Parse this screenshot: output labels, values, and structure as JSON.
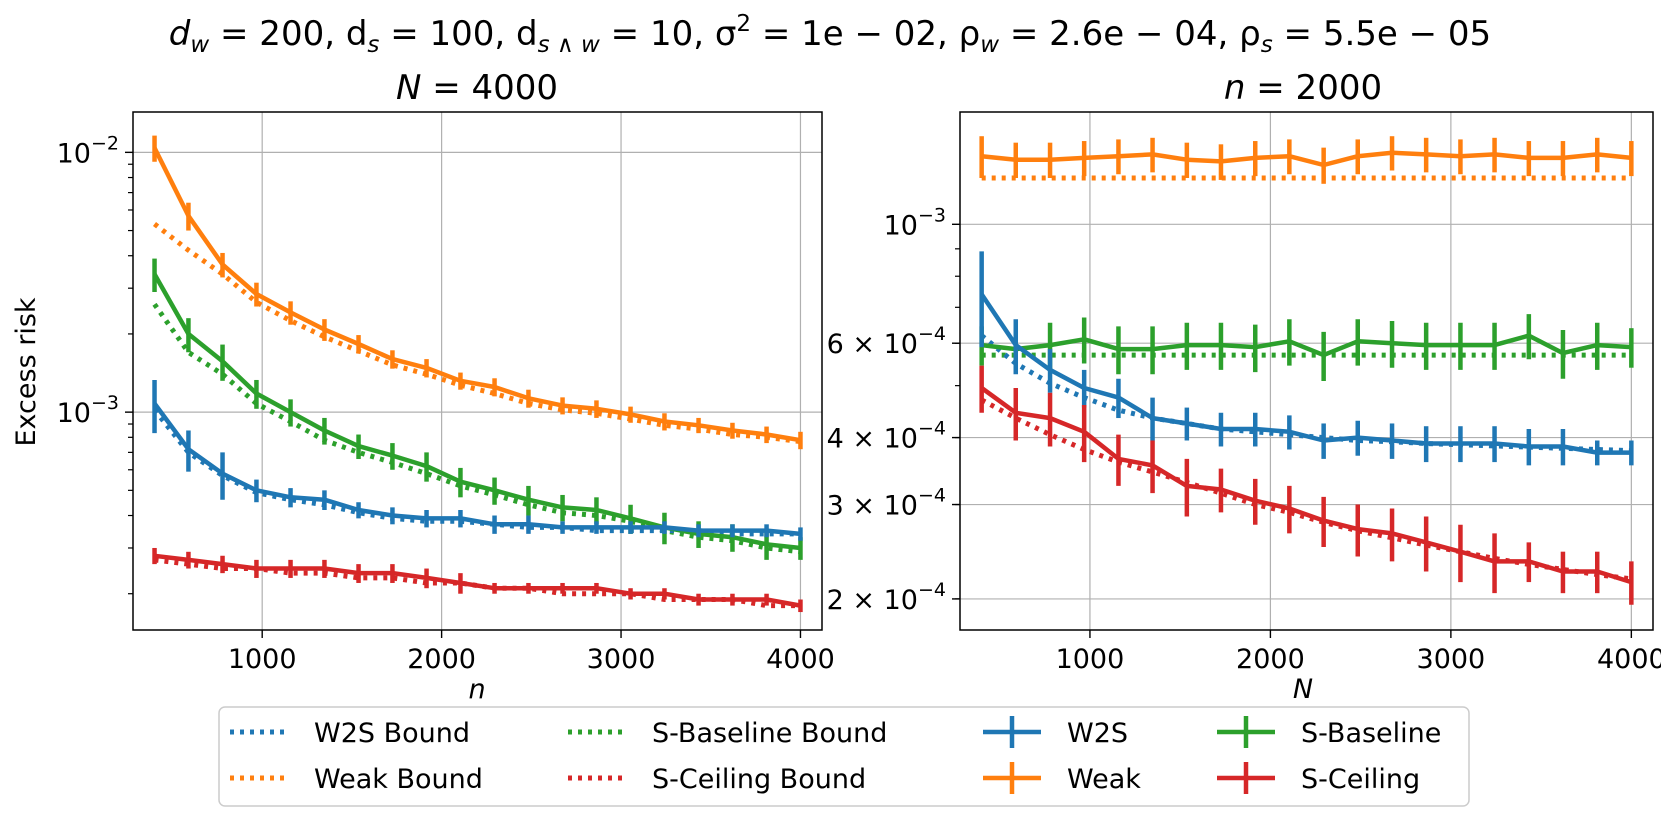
{
  "suptitle": "d_w = 200, d_s = 100, d_{s∧w} = 10, σ² = 1e − 02, ρ_w = 2.6e − 04, ρ_s = 5.5e − 05",
  "suptitle_parts": {
    "t1": "d",
    "t1s": "w",
    "t2": " = 200, d",
    "t2s": "s",
    "t3": " = 100, d",
    "t3s": "s ∧ w",
    "t4": " = 10, σ",
    "t4p": "2",
    "t5": " = 1e − 02, ρ",
    "t5s": "w",
    "t6": " = 2.6e − 04, ρ",
    "t6s": "s",
    "t7": " = 5.5e − 05"
  },
  "colors": {
    "W2S": "#1f77b4",
    "Weak": "#ff7f0e",
    "S-Baseline": "#2ca02c",
    "S-Ceiling": "#d62728"
  },
  "legend": {
    "items": [
      {
        "label": "W2S Bound",
        "style": "dotted",
        "series": "W2S"
      },
      {
        "label": "Weak Bound",
        "style": "dotted",
        "series": "Weak"
      },
      {
        "label": "S-Baseline Bound",
        "style": "dotted",
        "series": "S-Baseline"
      },
      {
        "label": "S-Ceiling Bound",
        "style": "dotted",
        "series": "S-Ceiling"
      },
      {
        "label": "W2S",
        "style": "errorbar",
        "series": "W2S"
      },
      {
        "label": "Weak",
        "style": "errorbar",
        "series": "Weak"
      },
      {
        "label": "S-Baseline",
        "style": "errorbar",
        "series": "S-Baseline"
      },
      {
        "label": "S-Ceiling",
        "style": "errorbar",
        "series": "S-Ceiling"
      }
    ]
  },
  "chart_data": [
    {
      "type": "line",
      "title": "N = 4000",
      "title_var": "N",
      "title_val": " = 4000",
      "xlabel": "n",
      "ylabel": "Excess risk",
      "yscale": "log",
      "xlim": [
        280,
        4120
      ],
      "ylim": [
        0.000145,
        0.0143
      ],
      "xticks": [
        1000,
        2000,
        3000,
        4000
      ],
      "xtick_labels": [
        "1000",
        "2000",
        "3000",
        "4000"
      ],
      "yticks": [
        0.01,
        0.001
      ],
      "ytick_labels": [
        {
          "base": "10",
          "exp": "−2"
        },
        {
          "base": "10",
          "exp": "−3"
        }
      ],
      "grid": true,
      "x": [
        400,
        589,
        779,
        968,
        1158,
        1347,
        1537,
        1726,
        1916,
        2105,
        2295,
        2484,
        2674,
        2863,
        3053,
        3242,
        3432,
        3621,
        3811,
        4000
      ],
      "series": [
        {
          "name": "Weak",
          "values": [
            0.0104,
            0.0057,
            0.0037,
            0.00285,
            0.00242,
            0.00208,
            0.00183,
            0.0016,
            0.00148,
            0.00132,
            0.00125,
            0.00113,
            0.00106,
            0.00103,
            0.00098,
            0.00092,
            0.00089,
            0.00085,
            0.00082,
            0.00078
          ],
          "err": [
            0.0012,
            0.0007,
            0.0004,
            0.0003,
            0.00025,
            0.0002,
            0.00015,
            0.00013,
            0.00012,
            0.0001,
            0.0001,
            9e-05,
            8e-05,
            8e-05,
            7e-05,
            7e-05,
            6e-05,
            6e-05,
            6e-05,
            6e-05
          ]
        },
        {
          "name": "S-Baseline",
          "values": [
            0.0034,
            0.002,
            0.00157,
            0.00118,
            0.001,
            0.00085,
            0.00074,
            0.00068,
            0.00062,
            0.00054,
            0.0005,
            0.00046,
            0.00043,
            0.00042,
            0.00039,
            0.00036,
            0.00034,
            0.00033,
            0.00031,
            0.0003
          ],
          "err": [
            0.0005,
            0.0003,
            0.00025,
            0.00015,
            0.00012,
            0.0001,
            8e-05,
            8e-05,
            8e-05,
            7e-05,
            6e-05,
            6e-05,
            5e-05,
            5e-05,
            5e-05,
            5e-05,
            4e-05,
            4e-05,
            4e-05,
            3e-05
          ]
        },
        {
          "name": "W2S",
          "values": [
            0.00108,
            0.00072,
            0.00058,
            0.0005,
            0.00047,
            0.00046,
            0.00042,
            0.0004,
            0.00039,
            0.00039,
            0.00037,
            0.00037,
            0.00036,
            0.00036,
            0.00036,
            0.00036,
            0.00035,
            0.00035,
            0.00035,
            0.00034
          ],
          "err": [
            0.00025,
            0.00013,
            0.00012,
            5e-05,
            4e-05,
            4e-05,
            3e-05,
            3e-05,
            3e-05,
            3e-05,
            3e-05,
            3e-05,
            2e-05,
            2e-05,
            2e-05,
            2e-05,
            2e-05,
            2e-05,
            2e-05,
            2e-05
          ]
        },
        {
          "name": "S-Ceiling",
          "values": [
            0.00028,
            0.00027,
            0.00026,
            0.00025,
            0.00025,
            0.00025,
            0.00024,
            0.00024,
            0.00023,
            0.00022,
            0.00021,
            0.00021,
            0.00021,
            0.00021,
            0.0002,
            0.0002,
            0.00019,
            0.00019,
            0.00019,
            0.00018
          ],
          "err": [
            2e-05,
            2e-05,
            2e-05,
            2e-05,
            2e-05,
            2e-05,
            2e-05,
            2e-05,
            2e-05,
            2e-05,
            1e-05,
            1e-05,
            1e-05,
            1e-05,
            1e-05,
            1e-05,
            1e-05,
            1e-05,
            1e-05,
            1e-05
          ]
        }
      ],
      "bounds": [
        {
          "name": "Weak",
          "values": [
            0.0053,
            0.0042,
            0.0034,
            0.00265,
            0.00225,
            0.00195,
            0.00172,
            0.00152,
            0.0014,
            0.00127,
            0.00118,
            0.00108,
            0.00102,
            0.00099,
            0.00094,
            0.00089,
            0.00086,
            0.00082,
            0.0008,
            0.00077
          ]
        },
        {
          "name": "S-Baseline",
          "values": [
            0.0026,
            0.0017,
            0.0014,
            0.00108,
            0.00092,
            0.00078,
            0.0007,
            0.00064,
            0.00058,
            0.00052,
            0.00048,
            0.00044,
            0.00041,
            0.0004,
            0.00038,
            0.00035,
            0.00033,
            0.00032,
            0.0003,
            0.00029
          ]
        },
        {
          "name": "W2S",
          "values": [
            0.00102,
            0.0007,
            0.00057,
            0.00049,
            0.00046,
            0.00044,
            0.00041,
            0.00039,
            0.00038,
            0.00038,
            0.00037,
            0.00036,
            0.00036,
            0.00035,
            0.00035,
            0.00035,
            0.00035,
            0.00034,
            0.00034,
            0.00034
          ]
        },
        {
          "name": "S-Ceiling",
          "values": [
            0.00027,
            0.00026,
            0.00025,
            0.00025,
            0.00024,
            0.00024,
            0.00023,
            0.00023,
            0.00022,
            0.00022,
            0.00021,
            0.00021,
            0.0002,
            0.0002,
            0.0002,
            0.00019,
            0.00019,
            0.00019,
            0.00018,
            0.00018
          ]
        }
      ]
    },
    {
      "type": "line",
      "title": "n = 2000",
      "title_var": "n",
      "title_val": " = 2000",
      "xlabel": "N",
      "ylabel": "",
      "yscale": "log",
      "xlim": [
        280,
        4120
      ],
      "ylim": [
        0.000175,
        0.00162
      ],
      "xticks": [
        1000,
        2000,
        3000,
        4000
      ],
      "xtick_labels": [
        "1000",
        "2000",
        "3000",
        "4000"
      ],
      "yticks": [
        0.001,
        0.0006,
        0.0004,
        0.0003,
        0.0002
      ],
      "ytick_labels": [
        {
          "base": "10",
          "exp": "−3"
        },
        {
          "base": "6 × 10",
          "exp": "−4"
        },
        {
          "base": "4 × 10",
          "exp": "−4"
        },
        {
          "base": "3 × 10",
          "exp": "−4"
        },
        {
          "base": "2 × 10",
          "exp": "−4"
        }
      ],
      "grid": true,
      "x": [
        400,
        589,
        779,
        968,
        1158,
        1347,
        1537,
        1726,
        1916,
        2105,
        2295,
        2484,
        2674,
        2863,
        3053,
        3242,
        3432,
        3621,
        3811,
        4000
      ],
      "series": [
        {
          "name": "Weak",
          "values": [
            0.00134,
            0.00132,
            0.00132,
            0.00133,
            0.00134,
            0.00135,
            0.00132,
            0.00131,
            0.00133,
            0.00134,
            0.00129,
            0.00134,
            0.00136,
            0.00135,
            0.00134,
            0.00135,
            0.00133,
            0.00133,
            0.00135,
            0.00133
          ],
          "err": [
            0.00012,
            0.0001,
            0.0001,
            0.0001,
            0.0001,
            0.0001,
            0.0001,
            0.0001,
            0.0001,
            0.0001,
            0.0001,
            0.0001,
            0.0001,
            0.0001,
            0.0001,
            0.0001,
            0.0001,
            0.0001,
            0.0001,
            0.0001
          ]
        },
        {
          "name": "S-Baseline",
          "values": [
            0.000595,
            0.000585,
            0.000595,
            0.00061,
            0.000585,
            0.000585,
            0.000595,
            0.000595,
            0.00059,
            0.000605,
            0.00057,
            0.000605,
            0.0006,
            0.000595,
            0.000595,
            0.000595,
            0.00062,
            0.000575,
            0.000595,
            0.00059
          ],
          "err": [
            5e-05,
            5e-05,
            6e-05,
            6e-05,
            6e-05,
            6e-05,
            6e-05,
            6e-05,
            6e-05,
            6e-05,
            6e-05,
            6e-05,
            6e-05,
            6e-05,
            6e-05,
            6e-05,
            6e-05,
            6e-05,
            6e-05,
            5e-05
          ]
        },
        {
          "name": "W2S",
          "values": [
            0.00074,
            0.000595,
            0.000535,
            0.000495,
            0.000475,
            0.000435,
            0.000425,
            0.000415,
            0.000415,
            0.00041,
            0.000395,
            0.0004,
            0.000395,
            0.00039,
            0.00039,
            0.00039,
            0.000385,
            0.000385,
            0.000375,
            0.000375
          ],
          "err": [
            0.00015,
            7e-05,
            5e-05,
            4e-05,
            4e-05,
            4e-05,
            3e-05,
            3e-05,
            3e-05,
            3e-05,
            3e-05,
            3e-05,
            3e-05,
            3e-05,
            3e-05,
            3e-05,
            3e-05,
            3e-05,
            2e-05,
            2e-05
          ]
        },
        {
          "name": "S-Ceiling",
          "values": [
            0.000495,
            0.000445,
            0.000435,
            0.00041,
            0.000365,
            0.000355,
            0.000325,
            0.00032,
            0.000305,
            0.000295,
            0.00028,
            0.00027,
            0.000265,
            0.000255,
            0.000245,
            0.000235,
            0.000235,
            0.000225,
            0.000225,
            0.000215
          ],
          "err": [
            5e-05,
            5e-05,
            5e-05,
            5e-05,
            4e-05,
            4e-05,
            4e-05,
            3e-05,
            3e-05,
            3e-05,
            3e-05,
            3e-05,
            3e-05,
            3e-05,
            3e-05,
            3e-05,
            2e-05,
            2e-05,
            2e-05,
            2e-05
          ]
        }
      ],
      "bounds": [
        {
          "name": "Weak",
          "values": [
            0.00122,
            0.00122,
            0.00122,
            0.00122,
            0.00122,
            0.00122,
            0.00122,
            0.00122,
            0.00122,
            0.00122,
            0.00122,
            0.00122,
            0.00122,
            0.00122,
            0.00122,
            0.00122,
            0.00122,
            0.00122,
            0.00122,
            0.00122
          ]
        },
        {
          "name": "S-Baseline",
          "values": [
            0.00057,
            0.00057,
            0.00057,
            0.00057,
            0.00057,
            0.00057,
            0.00057,
            0.00057,
            0.00057,
            0.00057,
            0.00057,
            0.00057,
            0.00057,
            0.00057,
            0.00057,
            0.00057,
            0.00057,
            0.00057,
            0.00057,
            0.00057
          ]
        },
        {
          "name": "W2S",
          "values": [
            0.00062,
            0.00055,
            0.000505,
            0.000475,
            0.00045,
            0.000435,
            0.000425,
            0.000415,
            0.00041,
            0.000405,
            0.0004,
            0.000395,
            0.000393,
            0.00039,
            0.000388,
            0.000386,
            0.000384,
            0.000382,
            0.00038,
            0.000378
          ]
        },
        {
          "name": "S-Ceiling",
          "values": [
            0.00047,
            0.000435,
            0.000405,
            0.00038,
            0.00036,
            0.000345,
            0.00033,
            0.000315,
            0.0003,
            0.00029,
            0.000278,
            0.000268,
            0.00026,
            0.000252,
            0.000245,
            0.000238,
            0.000232,
            0.000227,
            0.000222,
            0.000218
          ]
        }
      ]
    }
  ]
}
